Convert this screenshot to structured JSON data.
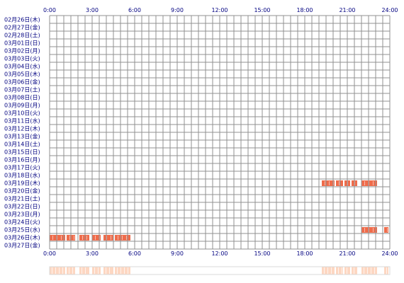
{
  "chart_data": {
    "type": "heatmap",
    "title": "",
    "xlabel": "",
    "ylabel": "",
    "x_range_hours": [
      0,
      24
    ],
    "x_ticks": [
      "0:00",
      "3:00",
      "6:00",
      "9:00",
      "12:00",
      "15:00",
      "18:00",
      "21:00",
      "24:00"
    ],
    "rows": [
      "02月26日(木)",
      "02月27日(金)",
      "02月28日(土)",
      "03月01日(日)",
      "03月02日(月)",
      "03月03日(火)",
      "03月04日(水)",
      "03月05日(木)",
      "03月06日(金)",
      "03月07日(土)",
      "03月08日(日)",
      "03月09日(月)",
      "03月10日(火)",
      "03月11日(水)",
      "03月12日(木)",
      "03月13日(金)",
      "03月14日(土)",
      "03月15日(日)",
      "03月16日(月)",
      "03月17日(火)",
      "03月18日(水)",
      "03月19日(木)",
      "03月20日(金)",
      "03月21日(土)",
      "03月22日(日)",
      "03月23日(月)",
      "03月24日(火)",
      "03月25日(水)",
      "03月26日(木)",
      "03月27日(金)"
    ],
    "activity": [
      {
        "row": "03月19日(木)",
        "intervals": [
          [
            19.2,
            20.1
          ],
          [
            20.2,
            20.7
          ],
          [
            20.8,
            21.2
          ],
          [
            21.3,
            21.7
          ],
          [
            22.0,
            23.1
          ]
        ]
      },
      {
        "row": "03月25日(水)",
        "intervals": [
          [
            22.0,
            23.1
          ],
          [
            23.6,
            23.9
          ]
        ]
      },
      {
        "row": "03月26日(木)",
        "intervals": [
          [
            0.0,
            1.1
          ],
          [
            1.2,
            1.8
          ],
          [
            2.1,
            2.8
          ],
          [
            3.0,
            3.6
          ],
          [
            3.8,
            4.5
          ],
          [
            4.6,
            5.7
          ]
        ]
      }
    ],
    "summary_strip": [
      [
        0.0,
        1.1
      ],
      [
        1.2,
        1.8
      ],
      [
        2.1,
        2.8
      ],
      [
        3.0,
        3.6
      ],
      [
        3.8,
        4.5
      ],
      [
        4.6,
        5.7
      ],
      [
        19.2,
        20.1
      ],
      [
        20.2,
        20.7
      ],
      [
        20.8,
        21.2
      ],
      [
        21.3,
        21.7
      ],
      [
        22.0,
        23.1
      ],
      [
        23.6,
        23.9
      ]
    ],
    "grid": true,
    "colors": {
      "activity": "#ef6c4b",
      "activity_stripe": "#ffffff",
      "summary": "#fdd7c2",
      "grid": "#909090",
      "label": "#000080"
    }
  }
}
